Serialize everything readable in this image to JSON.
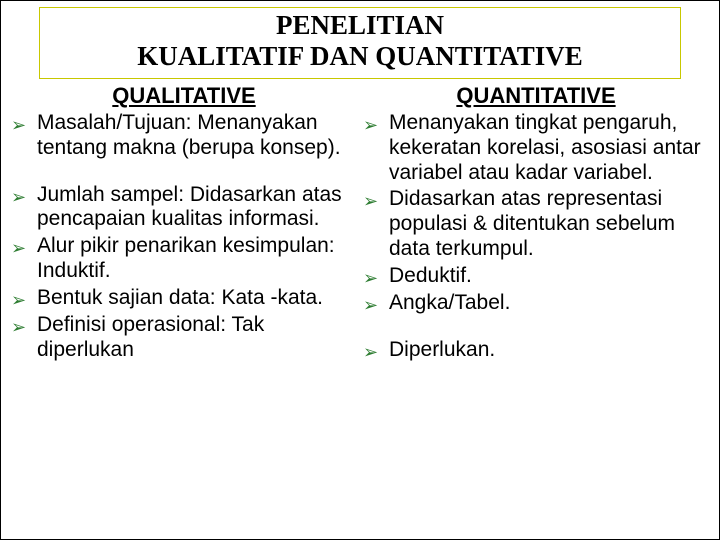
{
  "title_line1": "PENELITIAN",
  "title_line2": "KUALITATIF DAN QUANTITATIVE",
  "left": {
    "header": "QUALITATIVE",
    "items": [
      "Masalah/Tujuan: Menanyakan tentang makna (berupa konsep).",
      "Jumlah sampel: Didasarkan atas pencapaian kualitas informasi.",
      "Alur pikir penarikan kesimpulan: Induktif.",
      "Bentuk sajian data: Kata -kata.",
      "Definisi operasional: Tak diperlukan"
    ]
  },
  "right": {
    "header": "QUANTITATIVE",
    "items": [
      "Menanyakan tingkat pengaruh, kekeratan korelasi, asosiasi antar variabel atau kadar variabel.",
      "Didasarkan atas representasi populasi & ditentukan sebelum data terkumpul.",
      "Deduktif.",
      "Angka/Tabel.",
      "Diperlukan."
    ]
  },
  "colors": {
    "bullet_marker": "#2e7d32",
    "title_border": "#c8c800",
    "text": "#000000",
    "background": "#ffffff"
  },
  "bullet_glyph": "➢"
}
